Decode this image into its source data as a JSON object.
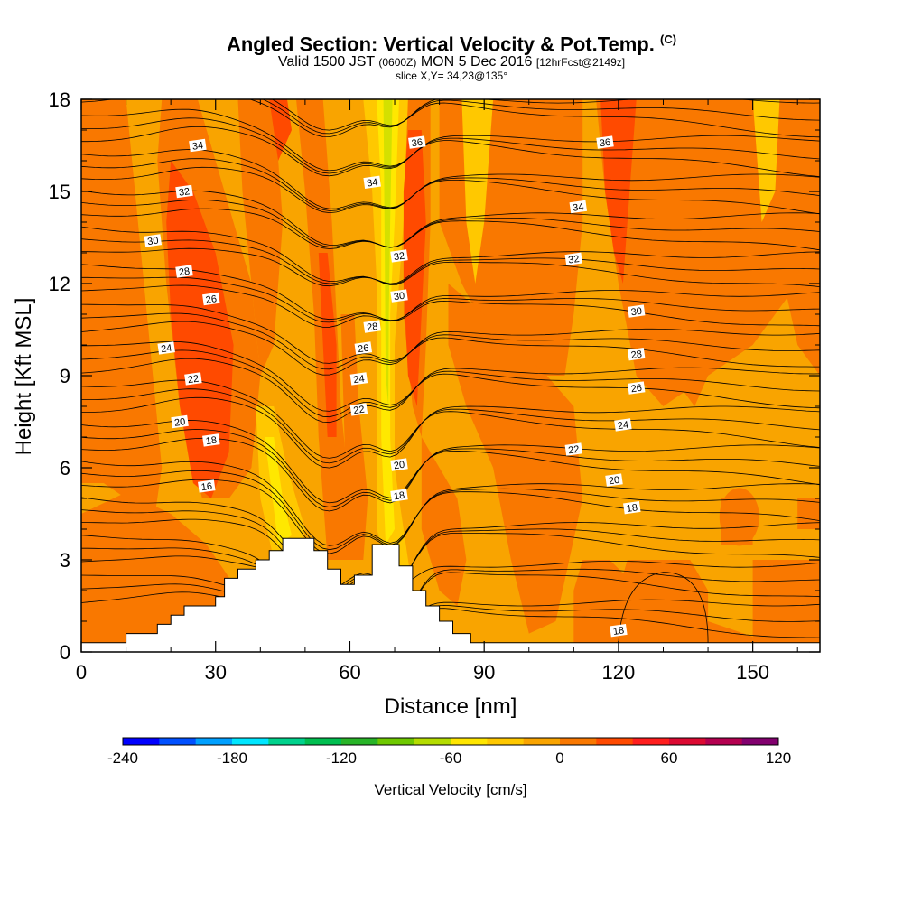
{
  "header": {
    "title": "Angled Section: Vertical Velocity & Pot.Temp.",
    "title_unit": "(C)",
    "valid_prefix": "Valid 1500 JST",
    "valid_zulu": "(0600Z)",
    "valid_date": "MON 5 Dec 2016",
    "forecast": "[12hrFcst@2149z]",
    "slice": "slice X,Y= 34,23@135°"
  },
  "colors": {
    "plot_background": "#f9a400",
    "band_orange": "#f97800",
    "band_redorange": "#ff4a00",
    "band_yellow": "#ffc800",
    "band_lightyellow": "#ffe800",
    "band_green": "#d4e000",
    "terrain": "#ffffff",
    "contour": "#000000"
  },
  "chart_data": {
    "type": "heatmap",
    "xlabel": "Distance [nm]",
    "ylabel": "Height [Kft MSL]",
    "xlim": [
      0,
      165
    ],
    "ylim": [
      0,
      18
    ],
    "x_ticks": [
      "0",
      "30",
      "60",
      "90",
      "120",
      "150"
    ],
    "y_ticks": [
      "0",
      "3",
      "6",
      "9",
      "12",
      "15",
      "18"
    ],
    "terrain_profile": [
      [
        0,
        0.3
      ],
      [
        10,
        0.3
      ],
      [
        10,
        0.6
      ],
      [
        17,
        0.6
      ],
      [
        17,
        0.9
      ],
      [
        20,
        0.9
      ],
      [
        20,
        1.2
      ],
      [
        23,
        1.2
      ],
      [
        23,
        1.5
      ],
      [
        30,
        1.5
      ],
      [
        30,
        1.8
      ],
      [
        32,
        1.8
      ],
      [
        32,
        2.4
      ],
      [
        35,
        2.4
      ],
      [
        35,
        2.7
      ],
      [
        39,
        2.7
      ],
      [
        39,
        3.0
      ],
      [
        42,
        3.0
      ],
      [
        42,
        3.3
      ],
      [
        45,
        3.3
      ],
      [
        45,
        3.7
      ],
      [
        52,
        3.7
      ],
      [
        52,
        3.3
      ],
      [
        55,
        3.3
      ],
      [
        55,
        2.7
      ],
      [
        58,
        2.7
      ],
      [
        58,
        2.2
      ],
      [
        61,
        2.2
      ],
      [
        61,
        2.5
      ],
      [
        65,
        2.5
      ],
      [
        65,
        3.5
      ],
      [
        71,
        3.5
      ],
      [
        71,
        2.8
      ],
      [
        74,
        2.8
      ],
      [
        74,
        2.0
      ],
      [
        77,
        2.0
      ],
      [
        77,
        1.5
      ],
      [
        80,
        1.5
      ],
      [
        80,
        1.0
      ],
      [
        83,
        1.0
      ],
      [
        83,
        0.6
      ],
      [
        87,
        0.6
      ],
      [
        87,
        0.3
      ],
      [
        165,
        0.3
      ]
    ],
    "theta_levels": [
      16,
      18,
      20,
      22,
      24,
      26,
      28,
      30,
      32,
      34,
      36
    ],
    "contour_labels": [
      {
        "text": "34",
        "x": 26,
        "y": 16.5
      },
      {
        "text": "36",
        "x": 75,
        "y": 16.6
      },
      {
        "text": "36",
        "x": 117,
        "y": 16.6
      },
      {
        "text": "34",
        "x": 65,
        "y": 15.3
      },
      {
        "text": "32",
        "x": 23,
        "y": 15.0
      },
      {
        "text": "34",
        "x": 111,
        "y": 14.5
      },
      {
        "text": "30",
        "x": 16,
        "y": 13.4
      },
      {
        "text": "32",
        "x": 71,
        "y": 12.9
      },
      {
        "text": "32",
        "x": 110,
        "y": 12.8
      },
      {
        "text": "28",
        "x": 23,
        "y": 12.4
      },
      {
        "text": "30",
        "x": 71,
        "y": 11.6
      },
      {
        "text": "26",
        "x": 29,
        "y": 11.5
      },
      {
        "text": "30",
        "x": 124,
        "y": 11.1
      },
      {
        "text": "28",
        "x": 65,
        "y": 10.6
      },
      {
        "text": "26",
        "x": 63,
        "y": 9.9
      },
      {
        "text": "24",
        "x": 19,
        "y": 9.9
      },
      {
        "text": "28",
        "x": 124,
        "y": 9.7
      },
      {
        "text": "22",
        "x": 25,
        "y": 8.9
      },
      {
        "text": "24",
        "x": 62,
        "y": 8.9
      },
      {
        "text": "26",
        "x": 124,
        "y": 8.6
      },
      {
        "text": "22",
        "x": 62,
        "y": 7.9
      },
      {
        "text": "20",
        "x": 22,
        "y": 7.5
      },
      {
        "text": "24",
        "x": 121,
        "y": 7.4
      },
      {
        "text": "18",
        "x": 29,
        "y": 6.9
      },
      {
        "text": "22",
        "x": 110,
        "y": 6.6
      },
      {
        "text": "20",
        "x": 71,
        "y": 6.1
      },
      {
        "text": "20",
        "x": 119,
        "y": 5.6
      },
      {
        "text": "16",
        "x": 28,
        "y": 5.4
      },
      {
        "text": "18",
        "x": 71,
        "y": 5.1
      },
      {
        "text": "18",
        "x": 123,
        "y": 4.7
      },
      {
        "text": "18",
        "x": 120,
        "y": 0.7
      }
    ]
  },
  "colorbar": {
    "title": "Vertical Velocity [cm/s]",
    "min": -240,
    "max": 120,
    "tick_labels": [
      "-240",
      "-180",
      "-120",
      "-60",
      "0",
      "60",
      "120"
    ],
    "colors": [
      "#0000ff",
      "#0050ff",
      "#00a0ff",
      "#00e6ff",
      "#00d28c",
      "#00be50",
      "#28b428",
      "#6ec800",
      "#b4dc00",
      "#ffe600",
      "#ffc800",
      "#f9a400",
      "#f97800",
      "#ff4a00",
      "#ff1e1e",
      "#dc0a32",
      "#b40050",
      "#82006e"
    ]
  }
}
